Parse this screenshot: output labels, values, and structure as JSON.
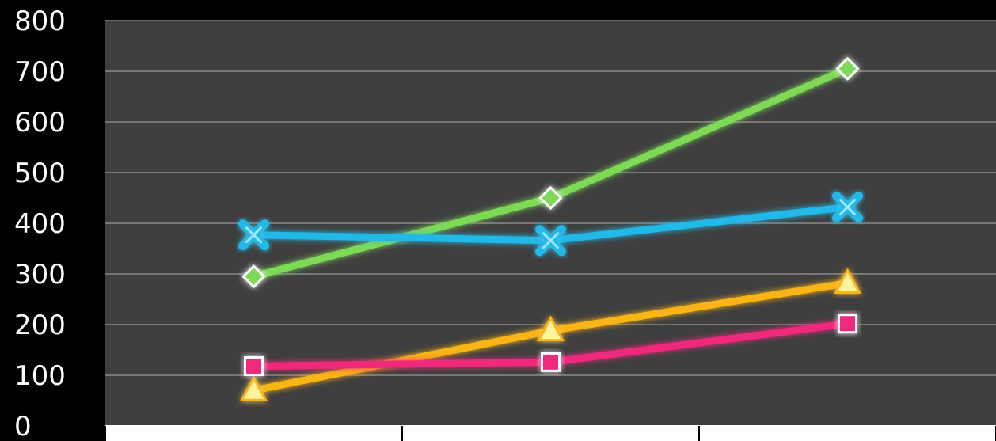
{
  "chart_data": {
    "type": "line",
    "title": "",
    "xlabel": "",
    "ylabel": "",
    "categories": [
      "",
      "",
      ""
    ],
    "ylim": [
      0,
      800
    ],
    "yticks": [
      "0",
      "100",
      "200",
      "300",
      "400",
      "500",
      "600",
      "700",
      "800"
    ],
    "grid": true,
    "legend": "none",
    "colors": {
      "background": "#000000",
      "plot_area": "#3f3f3f",
      "gridline": "#8a8a8a"
    },
    "series": [
      {
        "color": "#7ed957",
        "marker": "diamond",
        "values": [
          295,
          450,
          705
        ]
      },
      {
        "color": "#21b8e8",
        "marker": "x",
        "values": [
          377,
          366,
          432
        ]
      },
      {
        "color": "#f9b414",
        "marker": "triangle",
        "values": [
          70,
          188,
          282
        ]
      },
      {
        "color": "#ef2b7c",
        "marker": "square",
        "values": [
          118,
          126,
          202
        ]
      }
    ]
  }
}
